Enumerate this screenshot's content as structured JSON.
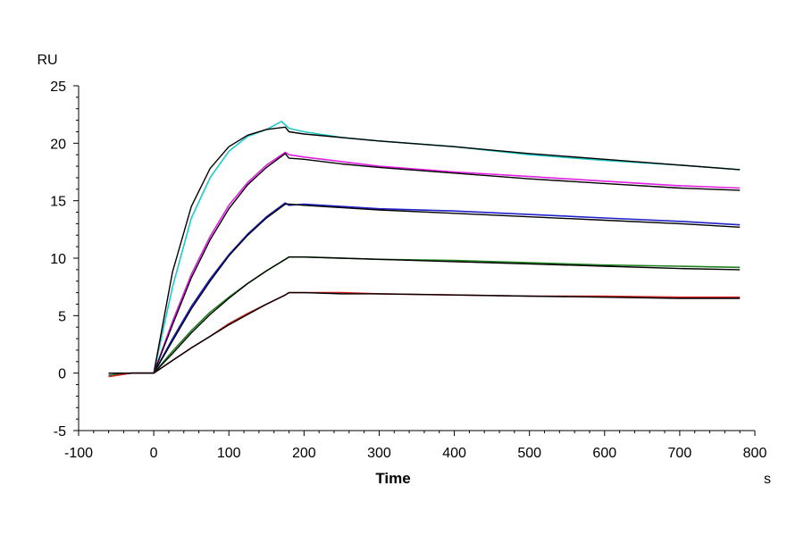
{
  "chart_data": {
    "type": "line",
    "title": "",
    "xlabel": "Time",
    "x_unit": "s",
    "ylabel": "RU",
    "xlim": [
      -100,
      800
    ],
    "ylim": [
      -5,
      25
    ],
    "x_ticks": [
      -100,
      0,
      100,
      200,
      300,
      400,
      500,
      600,
      700,
      800
    ],
    "y_ticks": [
      -5,
      0,
      5,
      10,
      15,
      20,
      25
    ],
    "x_tick_labels": [
      "-100",
      "0",
      "100",
      "200",
      "300",
      "400",
      "500",
      "600",
      "700",
      "800"
    ],
    "y_tick_labels": [
      "-5",
      "0",
      "5",
      "10",
      "15",
      "20",
      "25"
    ],
    "grid": false,
    "legend": "none",
    "series": [
      {
        "color": "#20c8c8",
        "x": [
          -60,
          -30,
          0,
          25,
          50,
          75,
          100,
          125,
          150,
          170,
          180,
          200,
          250,
          300,
          400,
          500,
          600,
          700,
          780
        ],
        "y": [
          -0.3,
          0,
          0,
          7.5,
          13.5,
          17.0,
          19.3,
          20.6,
          21.2,
          21.9,
          21.3,
          21.0,
          20.5,
          20.2,
          19.7,
          19.0,
          18.5,
          18.1,
          17.7
        ]
      },
      {
        "color": "#000000",
        "x": [
          -60,
          -30,
          0,
          25,
          50,
          75,
          100,
          125,
          150,
          175,
          180,
          200,
          250,
          300,
          400,
          500,
          600,
          700,
          780
        ],
        "y": [
          0,
          0,
          0,
          8.8,
          14.5,
          17.8,
          19.7,
          20.7,
          21.2,
          21.4,
          21.0,
          20.8,
          20.5,
          20.2,
          19.7,
          19.1,
          18.6,
          18.1,
          17.7
        ]
      },
      {
        "color": "#e020e0",
        "x": [
          -60,
          -30,
          0,
          25,
          50,
          75,
          100,
          125,
          150,
          175,
          180,
          200,
          250,
          300,
          400,
          500,
          600,
          700,
          780
        ],
        "y": [
          -0.2,
          0,
          0,
          4.5,
          8.6,
          11.9,
          14.6,
          16.6,
          18.1,
          19.2,
          19.0,
          18.8,
          18.4,
          18.0,
          17.5,
          17.1,
          16.7,
          16.3,
          16.1
        ]
      },
      {
        "color": "#000000",
        "x": [
          -60,
          -30,
          0,
          25,
          50,
          75,
          100,
          125,
          150,
          175,
          180,
          200,
          250,
          300,
          400,
          500,
          600,
          700,
          780
        ],
        "y": [
          0,
          0,
          0,
          4.2,
          8.3,
          11.6,
          14.3,
          16.4,
          17.9,
          19.1,
          18.7,
          18.6,
          18.2,
          17.9,
          17.4,
          16.9,
          16.5,
          16.1,
          15.9
        ]
      },
      {
        "color": "#2020c8",
        "x": [
          -60,
          -30,
          0,
          25,
          50,
          75,
          100,
          125,
          150,
          175,
          180,
          200,
          250,
          300,
          400,
          500,
          600,
          700,
          780
        ],
        "y": [
          -0.2,
          0,
          0,
          3.0,
          5.8,
          8.2,
          10.3,
          12.1,
          13.6,
          14.8,
          14.6,
          14.7,
          14.5,
          14.3,
          14.1,
          13.8,
          13.5,
          13.2,
          12.9
        ]
      },
      {
        "color": "#000000",
        "x": [
          -60,
          -30,
          0,
          25,
          50,
          75,
          100,
          125,
          150,
          175,
          180,
          200,
          250,
          300,
          400,
          500,
          600,
          700,
          780
        ],
        "y": [
          0,
          0,
          0,
          2.8,
          5.6,
          8.0,
          10.2,
          12.0,
          13.5,
          14.7,
          14.7,
          14.6,
          14.4,
          14.2,
          13.9,
          13.6,
          13.3,
          13.0,
          12.7
        ]
      },
      {
        "color": "#208020",
        "x": [
          -60,
          -30,
          0,
          25,
          50,
          75,
          100,
          125,
          150,
          175,
          180,
          200,
          250,
          300,
          400,
          500,
          600,
          700,
          780
        ],
        "y": [
          -0.2,
          0,
          0,
          1.9,
          3.7,
          5.3,
          6.6,
          7.8,
          8.9,
          9.9,
          10.1,
          10.1,
          10.0,
          9.9,
          9.8,
          9.6,
          9.4,
          9.3,
          9.2
        ]
      },
      {
        "color": "#000000",
        "x": [
          -60,
          -30,
          0,
          25,
          50,
          75,
          100,
          125,
          150,
          175,
          180,
          200,
          250,
          300,
          400,
          500,
          600,
          700,
          780
        ],
        "y": [
          0,
          0,
          0,
          1.7,
          3.5,
          5.1,
          6.5,
          7.8,
          8.9,
          9.9,
          10.1,
          10.1,
          10.0,
          9.9,
          9.7,
          9.5,
          9.3,
          9.1,
          9.0
        ]
      },
      {
        "color": "#d02020",
        "x": [
          -60,
          -30,
          0,
          25,
          50,
          75,
          100,
          125,
          150,
          175,
          180,
          200,
          250,
          300,
          400,
          500,
          600,
          700,
          780
        ],
        "y": [
          -0.3,
          0,
          0,
          1.1,
          2.2,
          3.2,
          4.3,
          5.2,
          6.0,
          6.8,
          7.0,
          7.0,
          7.0,
          6.9,
          6.8,
          6.7,
          6.7,
          6.6,
          6.6
        ]
      },
      {
        "color": "#000000",
        "x": [
          -60,
          -30,
          0,
          25,
          50,
          75,
          100,
          125,
          150,
          175,
          180,
          200,
          250,
          300,
          400,
          500,
          600,
          700,
          780
        ],
        "y": [
          0,
          0,
          0,
          1.1,
          2.2,
          3.2,
          4.2,
          5.1,
          6.0,
          6.8,
          7.0,
          7.0,
          6.9,
          6.9,
          6.8,
          6.7,
          6.6,
          6.5,
          6.5
        ]
      }
    ]
  }
}
